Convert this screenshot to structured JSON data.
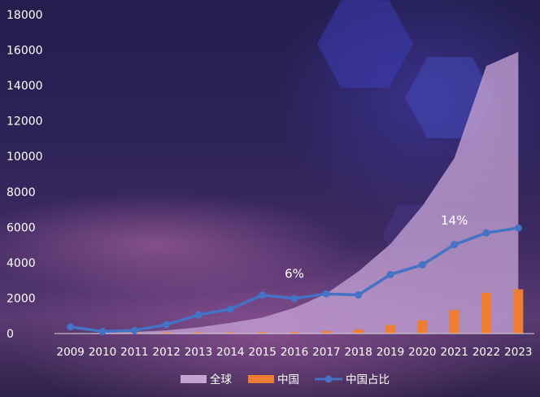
{
  "chart_data": {
    "type": "bar",
    "categories": [
      "2009",
      "2010",
      "2011",
      "2012",
      "2013",
      "2014",
      "2015",
      "2016",
      "2017",
      "2018",
      "2019",
      "2020",
      "2021",
      "2022",
      "2023"
    ],
    "ylim": [
      0,
      18000
    ],
    "yticks": [
      0,
      2000,
      4000,
      6000,
      8000,
      10000,
      12000,
      14000,
      16000,
      18000
    ],
    "grid": false,
    "legend_position": "bottom-center",
    "series": [
      {
        "name": "全球",
        "kind": "area",
        "color": "#c4a2d4",
        "values": [
          0,
          40,
          90,
          180,
          350,
          600,
          900,
          1450,
          2250,
          3500,
          5050,
          7200,
          9900,
          15100,
          15900
        ]
      },
      {
        "name": "中国",
        "kind": "bar",
        "color": "#ed7d31",
        "values": [
          0,
          0,
          10,
          20,
          30,
          40,
          80,
          80,
          140,
          230,
          480,
          740,
          1330,
          2300,
          2500
        ]
      },
      {
        "name": "中国占比",
        "kind": "line",
        "color": "#4472c4",
        "values": [
          380,
          120,
          180,
          500,
          1050,
          1380,
          2170,
          1980,
          2240,
          2180,
          3330,
          3880,
          5020,
          5680,
          5960
        ]
      }
    ],
    "annotations": [
      {
        "text": "6%",
        "category": "2016",
        "y": 3150
      },
      {
        "text": "14%",
        "category": "2021",
        "y": 6150
      }
    ]
  }
}
